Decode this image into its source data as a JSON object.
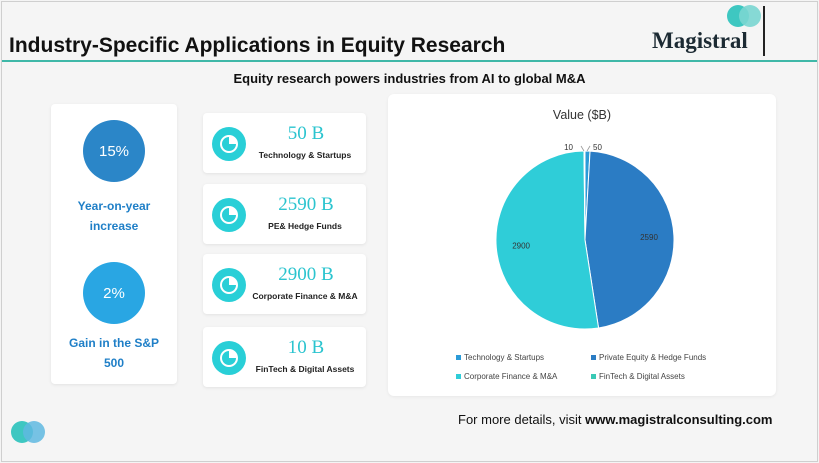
{
  "header": {
    "title": "Industry-Specific Applications in Equity Research",
    "logo_text": "Magistral",
    "subtitle": "Equity research powers industries from AI to global M&A"
  },
  "stats": [
    {
      "value": "15%",
      "label_line1": "Year-on-year",
      "label_line2": "increase"
    },
    {
      "value": "2%",
      "label_line1": "Gain in the S&P",
      "label_line2": "500"
    }
  ],
  "cards": [
    {
      "value": "50 B",
      "label": "Technology & Startups",
      "icon": "pie-chart-icon"
    },
    {
      "value": "2590 B",
      "label": "PE& Hedge Funds",
      "icon": "pie-chart-icon"
    },
    {
      "value": "2900 B",
      "label": "Corporate Finance & M&A",
      "icon": "pie-chart-icon"
    },
    {
      "value": "10 B",
      "label": "FinTech & Digital Assets",
      "icon": "pie-chart-icon"
    }
  ],
  "chart_data": {
    "type": "pie",
    "title": "Value ($B)",
    "categories": [
      "Technology & Startups",
      "Private Equity & Hedge Funds",
      "Corporate Finance & M&A",
      "FinTech & Digital Assets"
    ],
    "values": [
      50,
      2590,
      2900,
      10
    ],
    "colors": [
      "#2b9bd8",
      "#2b7cc4",
      "#2fcdd8",
      "#39c9b5"
    ],
    "legend_position": "bottom"
  },
  "footer": {
    "prefix": "For more details, visit ",
    "link": "www.magistralconsulting.com"
  },
  "colors": {
    "accent_line": "#3fb8a8",
    "bubble_dark": "#2b86c8",
    "bubble_light": "#29a6e3",
    "card_value": "#2bc4cf"
  }
}
